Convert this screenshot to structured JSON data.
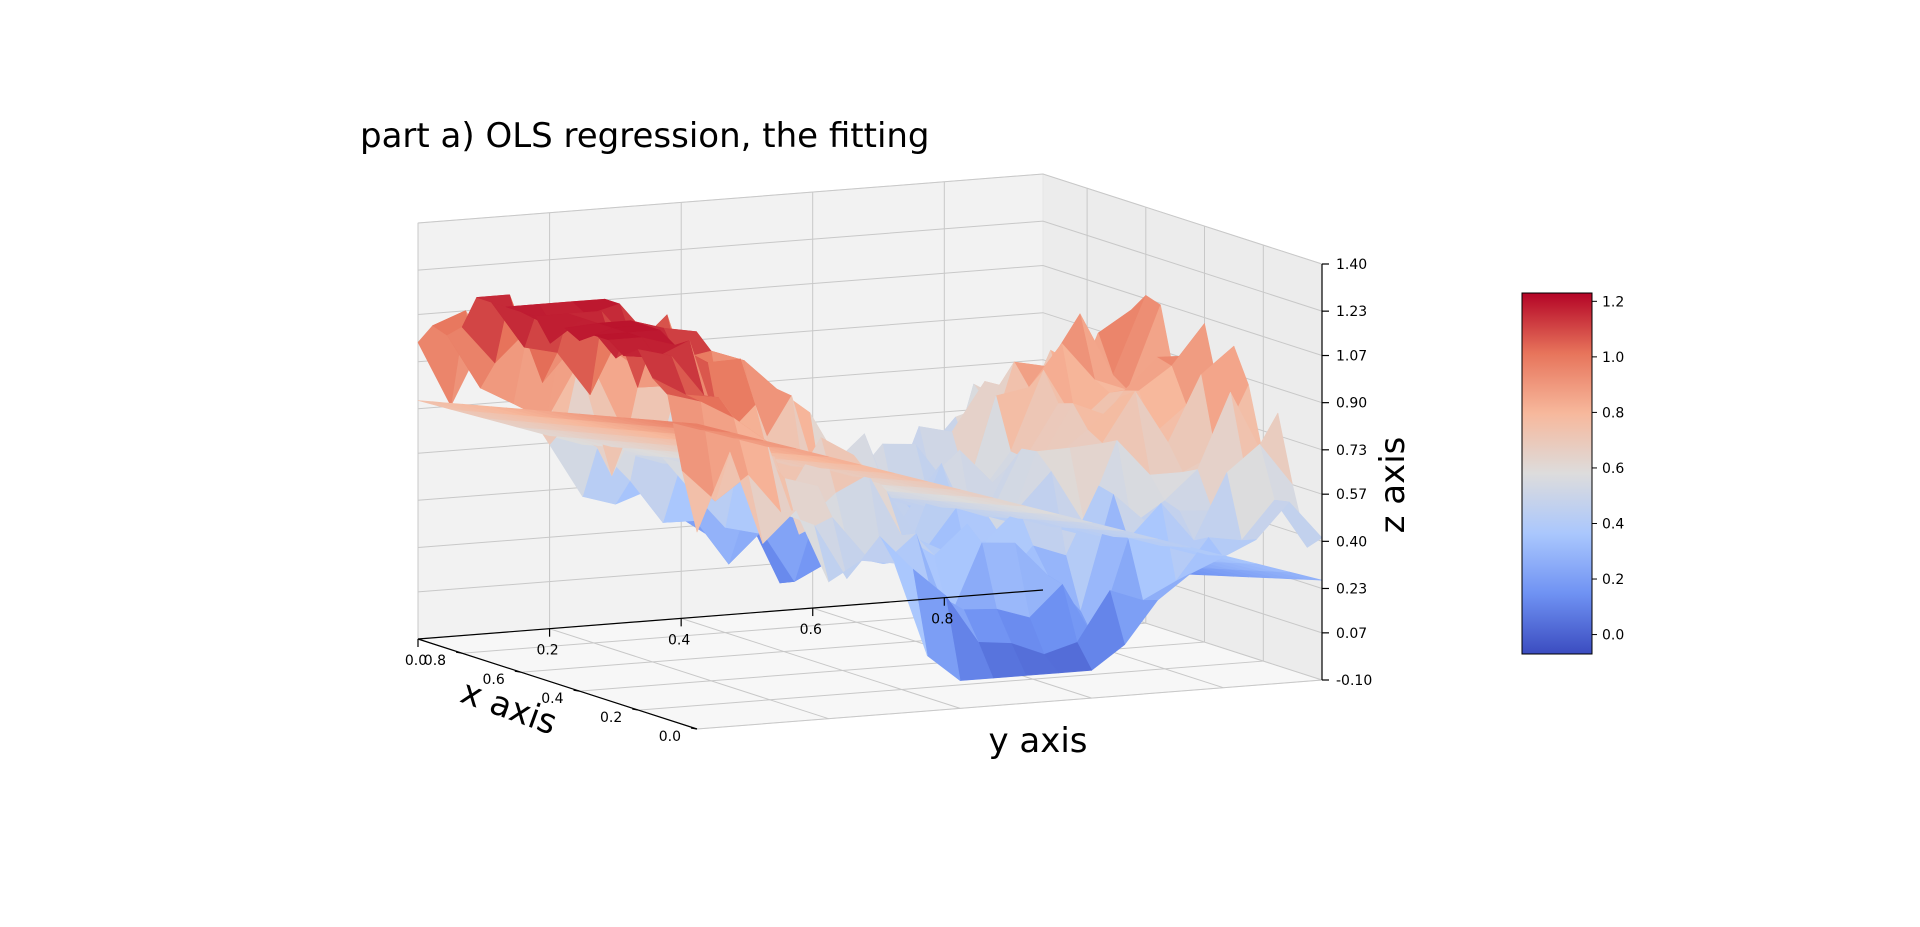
{
  "chart_data": {
    "type": "surface3d",
    "title": "part a) OLS regression, the fitting",
    "xlabel": "x axis",
    "ylabel": "y axis",
    "zlabel": "z axis",
    "xlim": [
      0.0,
      0.95
    ],
    "ylim": [
      0.0,
      0.95
    ],
    "zlim": [
      -0.1,
      1.4
    ],
    "x_ticks": [
      "0.0",
      "0.2",
      "0.4",
      "0.6",
      "0.8"
    ],
    "y_ticks": [
      "0.0",
      "0.2",
      "0.4",
      "0.6",
      "0.8"
    ],
    "z_ticks": [
      "-0.10",
      "0.07",
      "0.23",
      "0.40",
      "0.57",
      "0.73",
      "0.90",
      "1.07",
      "1.23",
      "1.40"
    ],
    "grid": true,
    "colormap": "coolwarm",
    "colormap_stops": [
      "#3b4cc0",
      "#6f92f3",
      "#aac7fd",
      "#dddcdc",
      "#f7b89c",
      "#e7745b",
      "#b40426"
    ],
    "colorbar": {
      "range": [
        -0.07,
        1.23
      ],
      "ticks": [
        "0.0",
        "0.2",
        "0.4",
        "0.6",
        "0.8",
        "1.0",
        "1.2"
      ]
    },
    "series": [
      {
        "kind": "noisy surface",
        "grid_x": [
          0.0,
          0.05,
          0.1,
          0.15,
          0.2,
          0.25,
          0.3,
          0.35,
          0.4,
          0.45,
          0.5,
          0.55,
          0.6,
          0.65,
          0.7,
          0.75,
          0.8,
          0.85,
          0.9,
          0.95
        ],
        "grid_y": [
          0.0,
          0.05,
          0.1,
          0.15,
          0.2,
          0.25,
          0.3,
          0.35,
          0.4,
          0.45,
          0.5,
          0.55,
          0.6,
          0.65,
          0.7,
          0.75,
          0.8,
          0.85,
          0.9,
          0.95
        ],
        "z_min": 0.0,
        "z_max": 1.2
      },
      {
        "kind": "fitted plane",
        "z_at_corners": {
          "x0_y0": 1.0,
          "x0_y1": 0.26,
          "x1_y0": 0.76,
          "x1_y1": -0.02
        }
      }
    ]
  }
}
